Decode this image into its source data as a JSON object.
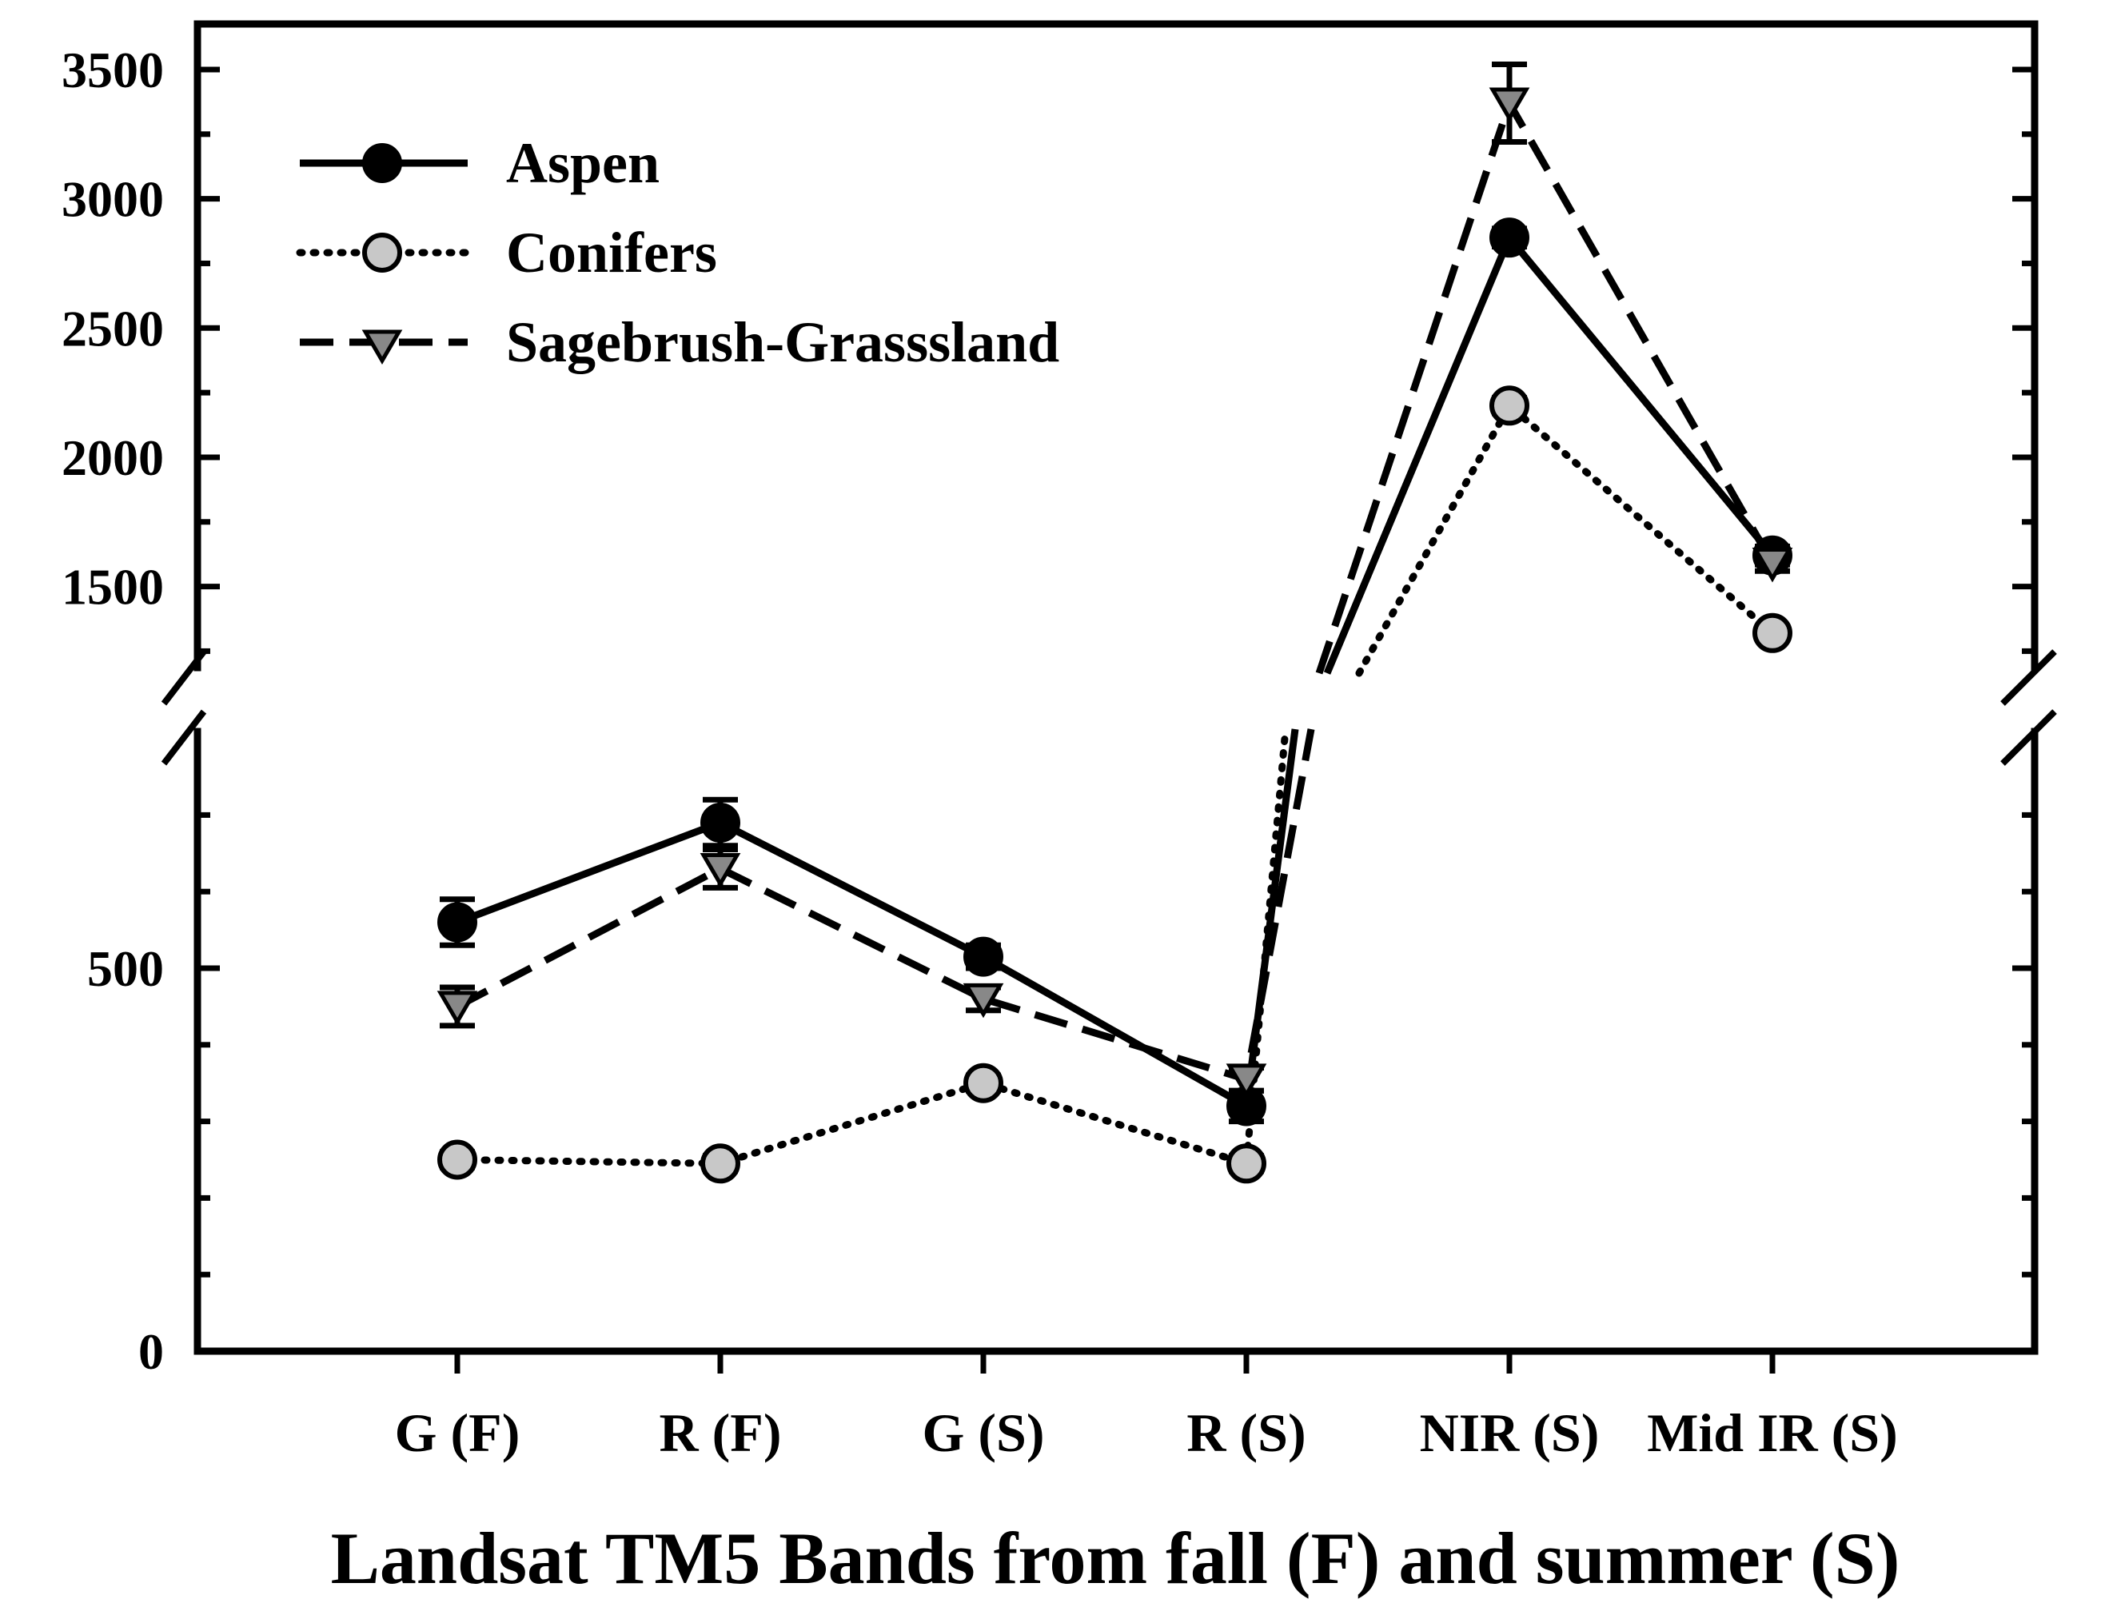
{
  "chart_data": {
    "type": "line",
    "title": "",
    "xlabel": "Landsat TM5 Bands from fall (F) and summer (S)",
    "ylabel": "",
    "categories": [
      "G (F)",
      "R (F)",
      "G (S)",
      "R (S)",
      "NIR (S)",
      "Mid IR (S)"
    ],
    "y_axis_break": {
      "lower_range": [
        0,
        800
      ],
      "upper_range": [
        1200,
        3550
      ],
      "lower_ticks": [
        "0",
        "500"
      ],
      "upper_ticks": [
        "1500",
        "2000",
        "2500",
        "3000",
        "3500"
      ]
    },
    "series": [
      {
        "name": "Aspen",
        "line": "solid",
        "marker": "circle",
        "marker_color": "#000000",
        "values": [
          560,
          690,
          515,
          320,
          2850,
          1620
        ],
        "errors": [
          30,
          30,
          15,
          20,
          35,
          35
        ]
      },
      {
        "name": "Conifers",
        "line": "dotted",
        "marker": "circle",
        "marker_color": "#c8c8c8",
        "values": [
          250,
          245,
          350,
          245,
          2200,
          1320
        ],
        "errors": [
          10,
          10,
          10,
          10,
          30,
          20
        ]
      },
      {
        "name": "Sagebrush-Grasssland",
        "line": "dashed",
        "marker": "triangle-down",
        "marker_color": "#888888",
        "values": [
          450,
          630,
          460,
          355,
          3370,
          1590
        ],
        "errors": [
          25,
          25,
          15,
          15,
          150,
          30
        ]
      }
    ],
    "legend": {
      "position": "top-left",
      "labels": [
        "Aspen",
        "Conifers",
        "Sagebrush-Grasssland"
      ]
    }
  }
}
